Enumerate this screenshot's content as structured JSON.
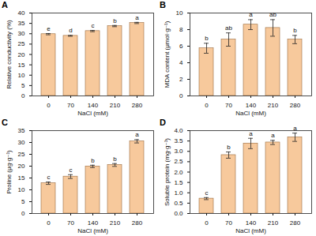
{
  "chart_data": [
    {
      "type": "bar",
      "title": "A",
      "x_label": "NaCl (mM)",
      "y_label": "Relative conductivity (%)",
      "categories": [
        "0",
        "70",
        "140",
        "210",
        "280"
      ],
      "values": [
        29.8,
        29.0,
        31.3,
        33.7,
        35.2
      ],
      "errors": [
        0.3,
        0.2,
        0.3,
        0.3,
        0.3
      ],
      "annotations": [
        "e",
        "d",
        "c",
        "b",
        "a"
      ],
      "color": "#f7c99c",
      "ylim": [
        0,
        40
      ],
      "yticks": [
        0,
        5,
        10,
        15,
        20,
        25,
        30,
        35,
        40
      ]
    },
    {
      "type": "bar",
      "title": "B",
      "x_label": "NaCl (mM)",
      "y_label": "MDA content (μmol·g⁻¹)",
      "categories": [
        "0",
        "70",
        "140",
        "210",
        "280"
      ],
      "values": [
        5.75,
        6.8,
        8.6,
        8.2,
        6.8
      ],
      "errors": [
        0.6,
        0.8,
        0.6,
        1.0,
        0.5
      ],
      "annotations": [
        "b",
        "ab",
        "a",
        "ab",
        "b"
      ],
      "color": "#f7c99c",
      "ylim": [
        0,
        10
      ],
      "yticks": [
        0,
        2,
        4,
        6,
        8,
        10
      ]
    },
    {
      "type": "bar",
      "title": "C",
      "x_label": "NaCl (mM)",
      "y_label": "Proline (μg·g⁻¹)",
      "categories": [
        "0",
        "70",
        "140",
        "210",
        "280"
      ],
      "values": [
        12.8,
        15.6,
        19.9,
        20.5,
        30.5
      ],
      "errors": [
        0.5,
        0.8,
        0.5,
        0.6,
        0.7
      ],
      "annotations": [
        "c",
        "c",
        "b",
        "b",
        "a"
      ],
      "color": "#f7c99c",
      "ylim": [
        0,
        35
      ],
      "yticks": [
        0,
        5,
        10,
        15,
        20,
        25,
        30,
        35
      ]
    },
    {
      "type": "bar",
      "title": "D",
      "x_label": "NaCl (mM)",
      "y_label": "Soluble protein (mg·g⁻¹)",
      "categories": [
        "0",
        "70",
        "140",
        "210",
        "280"
      ],
      "values": [
        0.72,
        2.82,
        3.38,
        3.43,
        3.68
      ],
      "errors": [
        0.05,
        0.15,
        0.25,
        0.1,
        0.2
      ],
      "annotations": [
        "c",
        "b",
        "a",
        "a",
        "a"
      ],
      "color": "#f7c99c",
      "ylim": [
        0,
        4
      ],
      "yticks": [
        {
          "value": 0,
          "label": "0.0"
        },
        {
          "value": 0.5,
          "label": "0.5"
        },
        {
          "value": 1,
          "label": "1.0"
        },
        {
          "value": 1.5,
          "label": "1.5"
        },
        {
          "value": 2,
          "label": "2.0"
        },
        {
          "value": 2.5,
          "label": "2.5"
        },
        {
          "value": 3,
          "label": "3.0"
        },
        {
          "value": 3.5,
          "label": "3.5"
        },
        {
          "value": 4,
          "label": "4.0"
        }
      ]
    }
  ]
}
